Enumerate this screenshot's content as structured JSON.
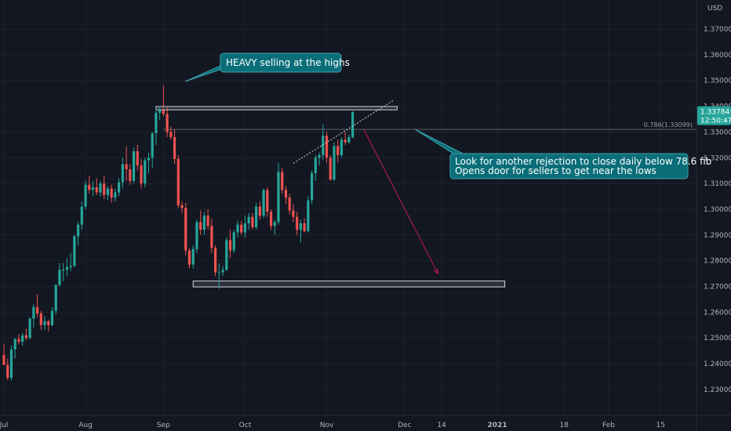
{
  "chart_data": {
    "type": "candlestick",
    "currency": "USD",
    "ylim": [
      1.2263,
      1.3755
    ],
    "y_ticks": [
      "1.37000",
      "1.36000",
      "1.35000",
      "1.34000",
      "1.33000",
      "1.32000",
      "1.31000",
      "1.30000",
      "1.29000",
      "1.28000",
      "1.27000",
      "1.26000",
      "1.25000",
      "1.24000",
      "1.23000"
    ],
    "x_ticks": [
      {
        "label": "Jul",
        "bar": 0,
        "bold": false
      },
      {
        "label": "Aug",
        "bar": 22,
        "bold": false
      },
      {
        "label": "Sep",
        "bar": 43,
        "bold": false
      },
      {
        "label": "Oct",
        "bar": 65,
        "bold": false
      },
      {
        "label": "Nov",
        "bar": 87,
        "bold": false
      },
      {
        "label": "Dec",
        "bar": 108,
        "bold": false
      },
      {
        "label": "14",
        "bar": 118,
        "bold": false
      },
      {
        "label": "2021",
        "bar": 133,
        "bold": true
      },
      {
        "label": "18",
        "bar": 151,
        "bold": false
      },
      {
        "label": "Feb",
        "bar": 163,
        "bold": false
      },
      {
        "label": "15",
        "bar": 177,
        "bold": false
      }
    ],
    "candles": [
      [
        1.2433,
        1.2475,
        1.2395,
        1.2395
      ],
      [
        1.2395,
        1.242,
        1.2335,
        1.2345
      ],
      [
        1.2345,
        1.247,
        1.2335,
        1.2455
      ],
      [
        1.2455,
        1.25,
        1.242,
        1.2495
      ],
      [
        1.2495,
        1.2515,
        1.2475,
        1.2485
      ],
      [
        1.2485,
        1.252,
        1.247,
        1.251
      ],
      [
        1.251,
        1.2535,
        1.249,
        1.25
      ],
      [
        1.25,
        1.258,
        1.2495,
        1.2575
      ],
      [
        1.2575,
        1.263,
        1.254,
        1.262
      ],
      [
        1.262,
        1.267,
        1.258,
        1.2595
      ],
      [
        1.2595,
        1.2605,
        1.253,
        1.255
      ],
      [
        1.255,
        1.2585,
        1.253,
        1.2565
      ],
      [
        1.2565,
        1.257,
        1.2525,
        1.255
      ],
      [
        1.255,
        1.262,
        1.2545,
        1.2605
      ],
      [
        1.2605,
        1.271,
        1.259,
        1.2705
      ],
      [
        1.2705,
        1.279,
        1.27,
        1.2765
      ],
      [
        1.2765,
        1.279,
        1.272,
        1.2765
      ],
      [
        1.2765,
        1.281,
        1.274,
        1.2775
      ],
      [
        1.2775,
        1.283,
        1.276,
        1.278
      ],
      [
        1.278,
        1.29,
        1.2775,
        1.2895
      ],
      [
        1.2895,
        1.295,
        1.286,
        1.294
      ],
      [
        1.294,
        1.303,
        1.292,
        1.301
      ],
      [
        1.301,
        1.311,
        1.3,
        1.3095
      ],
      [
        1.3095,
        1.313,
        1.306,
        1.3075
      ],
      [
        1.3075,
        1.311,
        1.305,
        1.3085
      ],
      [
        1.3085,
        1.312,
        1.3055,
        1.3065
      ],
      [
        1.3065,
        1.311,
        1.305,
        1.31
      ],
      [
        1.31,
        1.313,
        1.304,
        1.3055
      ],
      [
        1.3055,
        1.309,
        1.3035,
        1.308
      ],
      [
        1.308,
        1.3095,
        1.3025,
        1.3045
      ],
      [
        1.3045,
        1.308,
        1.303,
        1.3065
      ],
      [
        1.3065,
        1.312,
        1.305,
        1.3105
      ],
      [
        1.3105,
        1.32,
        1.308,
        1.3175
      ],
      [
        1.3175,
        1.3245,
        1.311,
        1.3155
      ],
      [
        1.3155,
        1.3175,
        1.3095,
        1.311
      ],
      [
        1.311,
        1.324,
        1.31,
        1.3225
      ],
      [
        1.3225,
        1.325,
        1.315,
        1.317
      ],
      [
        1.317,
        1.3195,
        1.308,
        1.31
      ],
      [
        1.31,
        1.32,
        1.3085,
        1.319
      ],
      [
        1.319,
        1.322,
        1.314,
        1.32
      ],
      [
        1.32,
        1.33,
        1.316,
        1.3295
      ],
      [
        1.3295,
        1.339,
        1.325,
        1.3375
      ],
      [
        1.3375,
        1.34,
        1.3345,
        1.3385
      ],
      [
        1.3385,
        1.348,
        1.336,
        1.337
      ],
      [
        1.337,
        1.3395,
        1.328,
        1.33
      ],
      [
        1.33,
        1.332,
        1.327,
        1.328
      ],
      [
        1.328,
        1.331,
        1.3175,
        1.3195
      ],
      [
        1.3195,
        1.321,
        1.3005,
        1.3015
      ],
      [
        1.3015,
        1.303,
        1.2985,
        1.3005
      ],
      [
        1.3005,
        1.3025,
        1.282,
        1.284
      ],
      [
        1.284,
        1.285,
        1.277,
        1.2785
      ],
      [
        1.2785,
        1.286,
        1.277,
        1.2845
      ],
      [
        1.2845,
        1.296,
        1.283,
        1.295
      ],
      [
        1.295,
        1.2995,
        1.29,
        1.292
      ],
      [
        1.292,
        1.299,
        1.29,
        1.2975
      ],
      [
        1.2975,
        1.3,
        1.292,
        1.2935
      ],
      [
        1.2935,
        1.2965,
        1.283,
        1.285
      ],
      [
        1.285,
        1.286,
        1.274,
        1.2755
      ],
      [
        1.2755,
        1.279,
        1.269,
        1.2755
      ],
      [
        1.2755,
        1.278,
        1.274,
        1.2765
      ],
      [
        1.2765,
        1.289,
        1.276,
        1.288
      ],
      [
        1.288,
        1.292,
        1.281,
        1.284
      ],
      [
        1.284,
        1.292,
        1.283,
        1.291
      ],
      [
        1.291,
        1.2955,
        1.289,
        1.294
      ],
      [
        1.294,
        1.2955,
        1.29,
        1.291
      ],
      [
        1.291,
        1.2975,
        1.289,
        1.2945
      ],
      [
        1.2945,
        1.2985,
        1.292,
        1.297
      ],
      [
        1.297,
        1.2985,
        1.292,
        1.293
      ],
      [
        1.293,
        1.3025,
        1.292,
        1.301
      ],
      [
        1.301,
        1.303,
        1.296,
        1.2975
      ],
      [
        1.2975,
        1.308,
        1.2965,
        1.3075
      ],
      [
        1.3075,
        1.3085,
        1.297,
        1.299
      ],
      [
        1.299,
        1.3,
        1.292,
        1.2935
      ],
      [
        1.2935,
        1.296,
        1.29,
        1.295
      ],
      [
        1.295,
        1.318,
        1.294,
        1.3145
      ],
      [
        1.3145,
        1.316,
        1.306,
        1.3075
      ],
      [
        1.3075,
        1.309,
        1.302,
        1.3045
      ],
      [
        1.3045,
        1.306,
        1.298,
        1.2995
      ],
      [
        1.2995,
        1.302,
        1.295,
        1.297
      ],
      [
        1.297,
        1.299,
        1.29,
        1.292
      ],
      [
        1.292,
        1.296,
        1.287,
        1.2945
      ],
      [
        1.2945,
        1.2965,
        1.291,
        1.2915
      ],
      [
        1.2915,
        1.305,
        1.291,
        1.3035
      ],
      [
        1.3035,
        1.315,
        1.302,
        1.314
      ],
      [
        1.314,
        1.321,
        1.311,
        1.32
      ],
      [
        1.32,
        1.322,
        1.317,
        1.321
      ],
      [
        1.321,
        1.333,
        1.319,
        1.3285
      ],
      [
        1.3285,
        1.33,
        1.318,
        1.32
      ],
      [
        1.32,
        1.321,
        1.311,
        1.3115
      ],
      [
        1.3115,
        1.326,
        1.311,
        1.3245
      ],
      [
        1.3245,
        1.327,
        1.318,
        1.321
      ],
      [
        1.321,
        1.328,
        1.32,
        1.327
      ],
      [
        1.327,
        1.33,
        1.325,
        1.326
      ],
      [
        1.326,
        1.329,
        1.3255,
        1.328
      ],
      [
        1.328,
        1.338,
        1.3275,
        1.3378
      ]
    ],
    "fib": {
      "ratio": "0.786",
      "level": "1.33099",
      "label": "0.786(1.33099)",
      "bar_start": 43
    },
    "last_price": {
      "value": "1.33784",
      "timer": "12:50:47"
    },
    "zones": [
      {
        "name": "resistance",
        "top": 1.3399,
        "bottom": 1.3386,
        "bar_start": 41,
        "bar_end": 106
      },
      {
        "name": "support",
        "top": 1.2721,
        "bottom": 1.2698,
        "bar_start": 51,
        "bar_end": 135
      }
    ],
    "trendline": {
      "bar_start": 78,
      "price_start": 1.3178,
      "bar_end": 105,
      "price_end": 1.3423
    },
    "projection": {
      "bar_start": 97,
      "price_start": 1.331,
      "bar_end": 117,
      "price_end": 1.275
    },
    "annotations": [
      {
        "name": "heavy-selling",
        "text": "HEAVY selling at the highs"
      },
      {
        "name": "rejection-note",
        "line1": "Look for another rejection to close daily below 78.6 fib",
        "line2": "Opens door for sellers to get near the lows"
      }
    ],
    "colors": {
      "up": "#26a69a",
      "down": "#ef5350",
      "background": "#131722",
      "grid": "#1e222d",
      "callout": "#0a6e79",
      "projection": "#c2185b"
    }
  }
}
